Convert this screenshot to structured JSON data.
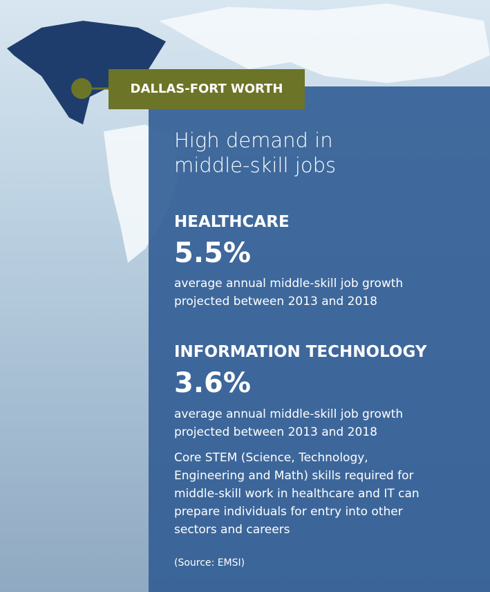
{
  "location_label": "DALLAS-FORT WORTH",
  "title_lines": [
    "High demand in",
    "middle-skill jobs"
  ],
  "sections": [
    {
      "label": "HEALTHCARE",
      "value": "5.5%",
      "description": [
        "average annual middle-skill job growth",
        "projected between 2013 and 2018"
      ]
    },
    {
      "label": "INFORMATION TECHNOLOGY",
      "value": "3.6%",
      "description": [
        "average annual middle-skill job growth",
        "projected between 2013 and 2018"
      ]
    }
  ],
  "note_lines": [
    "Core STEM (Science, Technology,",
    "Engineering and Math) skills required for",
    "middle-skill work in healthcare and IT can",
    "prepare individuals for entry into other",
    "sectors and careers"
  ],
  "source": "(Source: EMSI)"
}
